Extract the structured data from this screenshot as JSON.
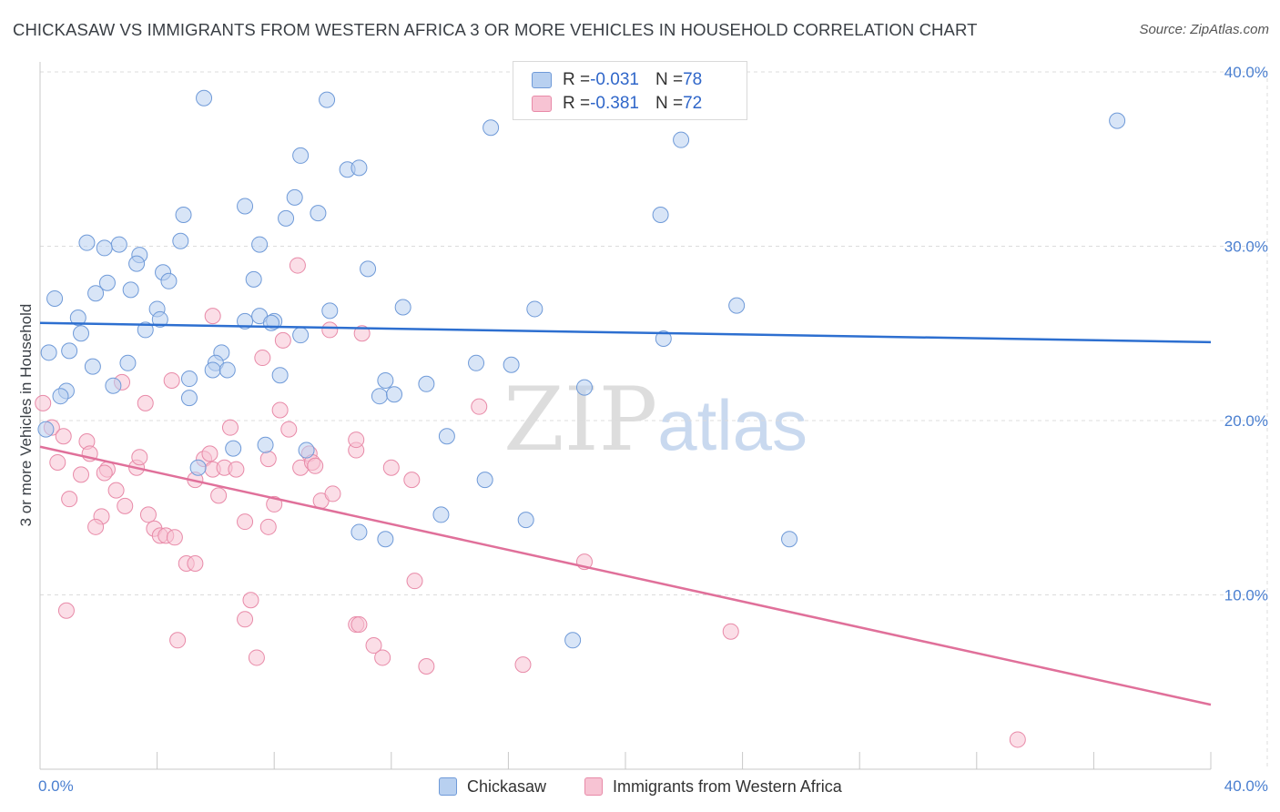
{
  "title": "CHICKASAW VS IMMIGRANTS FROM WESTERN AFRICA 3 OR MORE VEHICLES IN HOUSEHOLD CORRELATION CHART",
  "source": "Source: ZipAtlas.com",
  "watermark": {
    "zip": "ZIP",
    "atlas": "atlas"
  },
  "colors": {
    "blue_fill": "#b8d0f0",
    "blue_stroke": "#6f9ad8",
    "blue_line": "#2d6fd0",
    "pink_fill": "#f7c3d3",
    "pink_stroke": "#e88aa8",
    "pink_line": "#e0709a"
  },
  "legend_stats": [
    {
      "r_label": "R = ",
      "r_value": "-0.031",
      "n_label": "N = ",
      "n_value": "78"
    },
    {
      "r_label": "R = ",
      "r_value": "-0.381",
      "n_label": "N = ",
      "n_value": "72"
    }
  ],
  "chart_data": {
    "type": "scatter",
    "title": "CHICKASAW VS IMMIGRANTS FROM WESTERN AFRICA 3 OR MORE VEHICLES IN HOUSEHOLD CORRELATION CHART",
    "xlabel": "",
    "ylabel": "3 or more Vehicles in Household",
    "xlim": [
      0,
      40
    ],
    "ylim": [
      0,
      40
    ],
    "x_ticks": [
      "0.0%",
      "40.0%"
    ],
    "y_ticks": [
      {
        "value": 10,
        "label": "10.0%"
      },
      {
        "value": 20,
        "label": "20.0%"
      },
      {
        "value": 30,
        "label": "30.0%"
      },
      {
        "value": 40,
        "label": "40.0%"
      }
    ],
    "grid": true,
    "legend_position": "bottom",
    "series": [
      {
        "name": "Chickasaw",
        "trend": [
          [
            0,
            25.6
          ],
          [
            40,
            24.5
          ]
        ],
        "points": [
          [
            5.6,
            38.5
          ],
          [
            9.8,
            38.4
          ],
          [
            36.8,
            37.2
          ],
          [
            15.4,
            36.8
          ],
          [
            21.9,
            36.1
          ],
          [
            8.9,
            35.2
          ],
          [
            10.5,
            34.4
          ],
          [
            10.9,
            34.5
          ],
          [
            8.7,
            32.8
          ],
          [
            7.0,
            32.3
          ],
          [
            4.9,
            31.8
          ],
          [
            8.4,
            31.6
          ],
          [
            9.5,
            31.9
          ],
          [
            21.2,
            31.8
          ],
          [
            1.6,
            30.2
          ],
          [
            2.7,
            30.1
          ],
          [
            2.2,
            29.9
          ],
          [
            4.8,
            30.3
          ],
          [
            7.5,
            30.1
          ],
          [
            3.4,
            29.5
          ],
          [
            3.3,
            29.0
          ],
          [
            4.2,
            28.5
          ],
          [
            4.4,
            28.0
          ],
          [
            11.2,
            28.7
          ],
          [
            7.3,
            28.1
          ],
          [
            2.3,
            27.9
          ],
          [
            1.9,
            27.3
          ],
          [
            3.1,
            27.5
          ],
          [
            0.5,
            27.0
          ],
          [
            4.0,
            26.4
          ],
          [
            9.9,
            26.3
          ],
          [
            12.4,
            26.5
          ],
          [
            16.9,
            26.4
          ],
          [
            23.8,
            26.6
          ],
          [
            1.3,
            25.9
          ],
          [
            4.1,
            25.8
          ],
          [
            7.0,
            25.7
          ],
          [
            7.5,
            26.0
          ],
          [
            8.0,
            25.7
          ],
          [
            7.9,
            25.6
          ],
          [
            3.6,
            25.2
          ],
          [
            1.4,
            25.0
          ],
          [
            8.9,
            24.9
          ],
          [
            21.3,
            24.7
          ],
          [
            0.3,
            23.9
          ],
          [
            1.0,
            24.0
          ],
          [
            6.2,
            23.9
          ],
          [
            3.0,
            23.3
          ],
          [
            6.0,
            23.3
          ],
          [
            14.9,
            23.3
          ],
          [
            16.1,
            23.2
          ],
          [
            1.8,
            23.1
          ],
          [
            5.9,
            22.9
          ],
          [
            6.4,
            22.9
          ],
          [
            8.2,
            22.6
          ],
          [
            5.1,
            22.4
          ],
          [
            11.8,
            22.3
          ],
          [
            13.2,
            22.1
          ],
          [
            18.6,
            21.9
          ],
          [
            2.5,
            22.0
          ],
          [
            0.9,
            21.7
          ],
          [
            0.7,
            21.4
          ],
          [
            5.1,
            21.3
          ],
          [
            11.6,
            21.4
          ],
          [
            12.1,
            21.5
          ],
          [
            0.2,
            19.5
          ],
          [
            13.9,
            19.1
          ],
          [
            6.6,
            18.4
          ],
          [
            7.7,
            18.6
          ],
          [
            9.1,
            18.3
          ],
          [
            5.4,
            17.3
          ],
          [
            15.2,
            16.6
          ],
          [
            13.7,
            14.6
          ],
          [
            10.9,
            13.6
          ],
          [
            11.8,
            13.2
          ],
          [
            16.6,
            14.3
          ],
          [
            25.6,
            13.2
          ],
          [
            18.2,
            7.4
          ]
        ]
      },
      {
        "name": "Immigrants from Western Africa",
        "trend": [
          [
            0,
            18.5
          ],
          [
            40,
            3.7
          ]
        ],
        "points": [
          [
            0.1,
            21.0
          ],
          [
            0.4,
            19.6
          ],
          [
            0.8,
            19.1
          ],
          [
            0.6,
            17.6
          ],
          [
            1.6,
            18.8
          ],
          [
            1.7,
            18.1
          ],
          [
            1.4,
            16.9
          ],
          [
            1.0,
            15.5
          ],
          [
            0.9,
            9.1
          ],
          [
            2.3,
            17.2
          ],
          [
            2.6,
            16.0
          ],
          [
            2.1,
            14.5
          ],
          [
            1.9,
            13.9
          ],
          [
            2.9,
            15.1
          ],
          [
            3.3,
            17.3
          ],
          [
            3.4,
            17.9
          ],
          [
            3.6,
            21.0
          ],
          [
            2.8,
            22.2
          ],
          [
            3.7,
            14.6
          ],
          [
            3.9,
            13.8
          ],
          [
            4.1,
            13.4
          ],
          [
            4.3,
            13.4
          ],
          [
            4.6,
            13.3
          ],
          [
            4.5,
            22.3
          ],
          [
            5.0,
            11.8
          ],
          [
            5.3,
            11.8
          ],
          [
            5.3,
            16.6
          ],
          [
            5.6,
            17.8
          ],
          [
            5.8,
            18.1
          ],
          [
            5.9,
            17.2
          ],
          [
            6.1,
            15.7
          ],
          [
            5.9,
            26.0
          ],
          [
            6.3,
            17.3
          ],
          [
            6.5,
            19.6
          ],
          [
            6.7,
            17.2
          ],
          [
            7.0,
            14.2
          ],
          [
            7.0,
            8.6
          ],
          [
            7.2,
            9.7
          ],
          [
            7.4,
            6.4
          ],
          [
            7.6,
            23.6
          ],
          [
            7.8,
            17.8
          ],
          [
            7.8,
            13.9
          ],
          [
            8.0,
            15.2
          ],
          [
            8.2,
            20.6
          ],
          [
            8.3,
            24.6
          ],
          [
            8.5,
            19.5
          ],
          [
            8.8,
            28.9
          ],
          [
            8.9,
            17.3
          ],
          [
            9.2,
            18.1
          ],
          [
            9.3,
            17.6
          ],
          [
            9.4,
            17.4
          ],
          [
            9.6,
            15.4
          ],
          [
            10.0,
            15.8
          ],
          [
            9.9,
            25.2
          ],
          [
            10.8,
            8.3
          ],
          [
            10.9,
            8.3
          ],
          [
            11.0,
            25.0
          ],
          [
            10.8,
            18.3
          ],
          [
            10.8,
            18.9
          ],
          [
            11.4,
            7.1
          ],
          [
            11.7,
            6.4
          ],
          [
            12.0,
            17.3
          ],
          [
            12.7,
            16.6
          ],
          [
            12.8,
            10.8
          ],
          [
            13.2,
            5.9
          ],
          [
            15.0,
            20.8
          ],
          [
            16.5,
            6.0
          ],
          [
            18.6,
            11.9
          ],
          [
            23.6,
            7.9
          ],
          [
            4.7,
            7.4
          ],
          [
            2.2,
            17.0
          ],
          [
            33.4,
            1.7
          ]
        ]
      }
    ]
  }
}
